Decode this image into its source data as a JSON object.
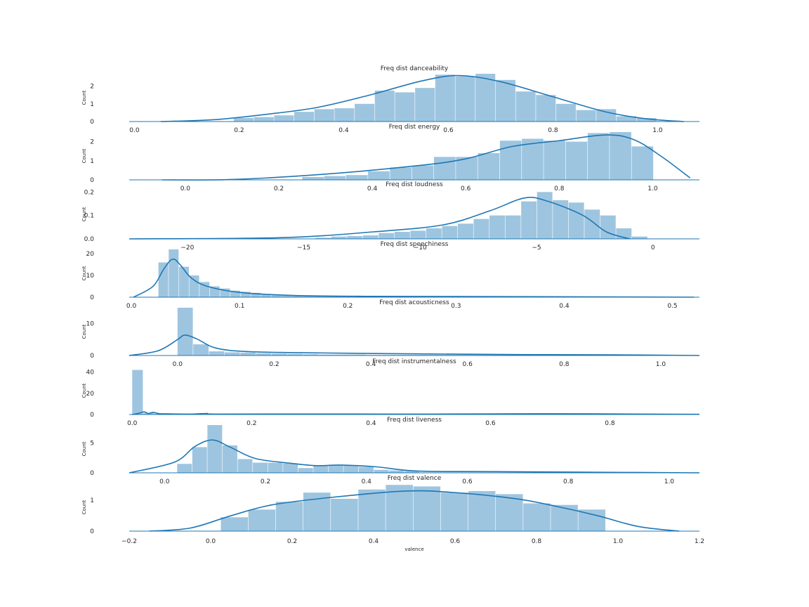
{
  "chart_data": [
    {
      "type": "bar",
      "title": "Freq dist danceability",
      "ylabel": "Count",
      "xlim": [
        -0.01,
        1.08
      ],
      "ylim": [
        0,
        2.7
      ],
      "xticks": [
        "0.0",
        "0.2",
        "0.4",
        "0.6",
        "0.8",
        "1.0"
      ],
      "yticks": [
        "0",
        "1",
        "2"
      ],
      "bins_x0": 0.19,
      "bin_width": 0.0385,
      "values": [
        0.2,
        0.25,
        0.35,
        0.55,
        0.7,
        0.75,
        1.0,
        1.75,
        1.65,
        1.9,
        2.65,
        2.55,
        2.7,
        2.35,
        1.7,
        1.5,
        1.0,
        0.65,
        0.7,
        0.3,
        0.2
      ],
      "kde": [
        [
          0.05,
          0.0
        ],
        [
          0.15,
          0.1
        ],
        [
          0.25,
          0.4
        ],
        [
          0.35,
          0.8
        ],
        [
          0.45,
          1.5
        ],
        [
          0.55,
          2.3
        ],
        [
          0.62,
          2.6
        ],
        [
          0.7,
          2.25
        ],
        [
          0.8,
          1.4
        ],
        [
          0.9,
          0.55
        ],
        [
          0.98,
          0.15
        ],
        [
          1.05,
          0.0
        ]
      ],
      "bar_color": "#9ec5e0",
      "line_color": "#1f77b4"
    },
    {
      "type": "bar",
      "title": "Freq dist energy",
      "ylabel": "Count",
      "xlim": [
        -0.12,
        1.1
      ],
      "ylim": [
        0,
        2.5
      ],
      "xticks": [
        "0.0",
        "0.2",
        "0.4",
        "0.6",
        "0.8",
        "1.0"
      ],
      "yticks": [
        "0",
        "1",
        "2"
      ],
      "bins_x0": 0.25,
      "bin_width": 0.047,
      "values": [
        0.15,
        0.2,
        0.25,
        0.45,
        0.65,
        0.75,
        1.2,
        1.2,
        1.4,
        2.05,
        2.15,
        2.05,
        2.0,
        2.45,
        2.5,
        1.75
      ],
      "kde": [
        [
          -0.05,
          0.0
        ],
        [
          0.1,
          0.02
        ],
        [
          0.3,
          0.3
        ],
        [
          0.5,
          0.75
        ],
        [
          0.6,
          1.1
        ],
        [
          0.7,
          1.75
        ],
        [
          0.8,
          2.05
        ],
        [
          0.9,
          2.35
        ],
        [
          0.96,
          2.1
        ],
        [
          1.02,
          1.2
        ],
        [
          1.08,
          0.1
        ]
      ],
      "bar_color": "#9ec5e0",
      "line_color": "#1f77b4"
    },
    {
      "type": "bar",
      "title": "Freq dist loudness",
      "ylabel": "Count",
      "xlim": [
        -22.5,
        2.0
      ],
      "ylim": [
        0,
        0.21
      ],
      "xticks": [
        "−20",
        "−15",
        "−10",
        "−5",
        "0"
      ],
      "yticks": [
        "0.0",
        "0.1",
        "0.2"
      ],
      "bins_x0": -14.5,
      "bin_width": 0.68,
      "values": [
        0.005,
        0.01,
        0.012,
        0.015,
        0.025,
        0.03,
        0.035,
        0.045,
        0.055,
        0.065,
        0.085,
        0.1,
        0.1,
        0.16,
        0.2,
        0.165,
        0.155,
        0.125,
        0.1,
        0.045,
        0.01
      ],
      "kde": [
        [
          -22.5,
          0.0
        ],
        [
          -16,
          0.005
        ],
        [
          -12,
          0.03
        ],
        [
          -9,
          0.06
        ],
        [
          -7,
          0.12
        ],
        [
          -5.5,
          0.175
        ],
        [
          -4.5,
          0.16
        ],
        [
          -3,
          0.1
        ],
        [
          -2,
          0.03
        ],
        [
          -1,
          0.0
        ]
      ],
      "bar_color": "#9ec5e0",
      "line_color": "#1f77b4"
    },
    {
      "type": "bar",
      "title": "Freq dist speechiness",
      "ylabel": "Count",
      "xlim": [
        -0.002,
        0.525
      ],
      "ylim": [
        0,
        22
      ],
      "xticks": [
        "0.0",
        "0.1",
        "0.2",
        "0.3",
        "0.4",
        "0.5"
      ],
      "yticks": [
        "0",
        "10",
        "20"
      ],
      "bins_x0": 0.025,
      "bin_width": 0.0095,
      "values": [
        16,
        22,
        14,
        10,
        7,
        5,
        4,
        3,
        2.5,
        2,
        1.2,
        1,
        0.8,
        0.6,
        0.5,
        0.5,
        0.4,
        0.3,
        0.3,
        0.3
      ],
      "kde": [
        [
          0.002,
          0.0
        ],
        [
          0.02,
          5
        ],
        [
          0.03,
          13
        ],
        [
          0.038,
          17.5
        ],
        [
          0.045,
          15
        ],
        [
          0.055,
          9
        ],
        [
          0.07,
          5
        ],
        [
          0.1,
          2.2
        ],
        [
          0.15,
          0.8
        ],
        [
          0.22,
          0.4
        ],
        [
          0.3,
          0.3
        ],
        [
          0.4,
          0.2
        ],
        [
          0.52,
          0.0
        ]
      ],
      "bar_color": "#9ec5e0",
      "line_color": "#1f77b4"
    },
    {
      "type": "bar",
      "title": "Freq dist acousticness",
      "ylabel": "Count",
      "xlim": [
        -0.1,
        1.08
      ],
      "ylim": [
        0,
        15
      ],
      "xticks": [
        "0.0",
        "0.2",
        "0.4",
        "0.6",
        "0.8",
        "1.0"
      ],
      "yticks": [
        "0",
        "10"
      ],
      "bins_x0": 0.0,
      "bin_width": 0.0325,
      "values": [
        15,
        3.5,
        1.3,
        1.0,
        0.9,
        0.7,
        0.6,
        0.5,
        0.4,
        0.3,
        0.3,
        0.3,
        0.2,
        0.2,
        0.2,
        0.2,
        0.2,
        0.2,
        0.2,
        0.2,
        0.2,
        0.2,
        0.2,
        0.2,
        0.2,
        0.2,
        0.2,
        0.2,
        0.2,
        0.2
      ],
      "kde": [
        [
          -0.1,
          0.0
        ],
        [
          -0.04,
          1.5
        ],
        [
          0.0,
          5
        ],
        [
          0.015,
          6.4
        ],
        [
          0.04,
          5.2
        ],
        [
          0.08,
          2.3
        ],
        [
          0.15,
          1.2
        ],
        [
          0.3,
          0.8
        ],
        [
          0.5,
          0.5
        ],
        [
          0.7,
          0.3
        ],
        [
          0.9,
          0.2
        ],
        [
          1.08,
          0.0
        ]
      ],
      "bar_color": "#9ec5e0",
      "line_color": "#1f77b4"
    },
    {
      "type": "bar",
      "title": "Freq dist instrumentalness",
      "ylabel": "Count",
      "xlim": [
        -0.005,
        0.95
      ],
      "ylim": [
        0,
        45
      ],
      "xticks": [
        "0.0",
        "0.2",
        "0.4",
        "0.6",
        "0.8"
      ],
      "yticks": [
        "0",
        "20",
        "40"
      ],
      "bins_x0": 0.0,
      "bin_width": 0.0185,
      "values": [
        42,
        1.5,
        0.8,
        0.5,
        0.4,
        0.3,
        0.3,
        0.3,
        0.3,
        0.3
      ],
      "kde": [
        [
          0.0,
          0.0
        ],
        [
          0.01,
          1
        ],
        [
          0.02,
          2.5
        ],
        [
          0.027,
          1
        ],
        [
          0.035,
          2
        ],
        [
          0.045,
          0.8
        ],
        [
          0.06,
          0.6
        ],
        [
          0.1,
          0.4
        ],
        [
          0.125,
          1
        ],
        [
          0.14,
          0.4
        ],
        [
          0.3,
          0.5
        ],
        [
          0.5,
          0.4
        ],
        [
          0.7,
          0.7
        ],
        [
          0.9,
          0.3
        ],
        [
          0.95,
          0.2
        ]
      ],
      "bar_color": "#9ec5e0",
      "line_color": "#1f77b4"
    },
    {
      "type": "bar",
      "title": "Freq dist liveness",
      "ylabel": "Count",
      "xlim": [
        -0.07,
        1.06
      ],
      "ylim": [
        0,
        8
      ],
      "xticks": [
        "0.0",
        "0.2",
        "0.4",
        "0.6",
        "0.8",
        "1.0"
      ],
      "yticks": [
        "0",
        "5"
      ],
      "bins_x0": 0.025,
      "bin_width": 0.03,
      "values": [
        1.5,
        4.3,
        8.0,
        4.6,
        2.3,
        1.7,
        1.7,
        1.6,
        0.8,
        1.3,
        1.3,
        1.3,
        1.0,
        0.5,
        0.4,
        0.3
      ],
      "kde": [
        [
          -0.07,
          0.0
        ],
        [
          0.02,
          1.8
        ],
        [
          0.06,
          4.4
        ],
        [
          0.095,
          5.5
        ],
        [
          0.13,
          4.3
        ],
        [
          0.18,
          2.4
        ],
        [
          0.25,
          1.6
        ],
        [
          0.3,
          1.2
        ],
        [
          0.35,
          1.3
        ],
        [
          0.42,
          1.0
        ],
        [
          0.5,
          0.3
        ],
        [
          0.65,
          0.2
        ],
        [
          0.85,
          0.1
        ],
        [
          1.06,
          0.0
        ]
      ],
      "bar_color": "#9ec5e0",
      "line_color": "#1f77b4"
    },
    {
      "type": "bar",
      "title": "Freq dist valence",
      "ylabel": "Count",
      "xlabel": "valence",
      "xlim": [
        -0.2,
        1.2
      ],
      "ylim": [
        0,
        1.55
      ],
      "xticks": [
        "−0.2",
        "0.0",
        "0.2",
        "0.4",
        "0.6",
        "0.8",
        "1.0",
        "1.2"
      ],
      "yticks": [
        "0",
        "1"
      ],
      "bins_x0": 0.025,
      "bin_width": 0.0675,
      "values": [
        0.45,
        0.7,
        0.95,
        1.25,
        1.05,
        1.35,
        1.5,
        1.45,
        1.25,
        1.3,
        1.2,
        0.9,
        0.85,
        0.7
      ],
      "kde": [
        [
          -0.15,
          0.0
        ],
        [
          -0.05,
          0.1
        ],
        [
          0.05,
          0.5
        ],
        [
          0.15,
          0.85
        ],
        [
          0.3,
          1.1
        ],
        [
          0.48,
          1.3
        ],
        [
          0.6,
          1.25
        ],
        [
          0.75,
          1.05
        ],
        [
          0.85,
          0.8
        ],
        [
          0.95,
          0.5
        ],
        [
          1.05,
          0.15
        ],
        [
          1.15,
          0.0
        ]
      ],
      "bar_color": "#9ec5e0",
      "line_color": "#1f77b4"
    }
  ]
}
